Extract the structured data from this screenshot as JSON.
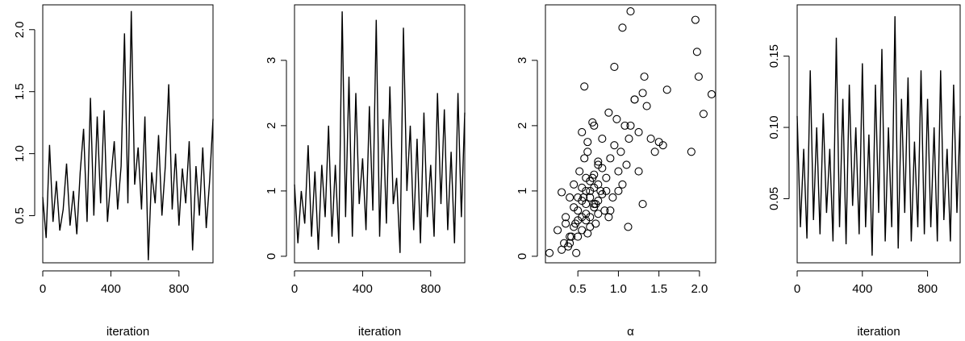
{
  "chart_data": [
    {
      "type": "line",
      "xlabel": "iteration",
      "xlim": [
        0,
        1000
      ],
      "ylim": [
        0.12,
        2.2
      ],
      "xticks": [
        0,
        400,
        800
      ],
      "xtick_labels": [
        "0",
        "400",
        "800"
      ],
      "yticks": [
        0.5,
        1.0,
        1.5,
        2.0
      ],
      "ytick_labels": [
        "0.5",
        "1.0",
        "1.5",
        "2.0"
      ],
      "series": [
        {
          "x": [
            0,
            20,
            40,
            60,
            80,
            100,
            120,
            140,
            160,
            180,
            200,
            220,
            240,
            260,
            280,
            300,
            320,
            340,
            360,
            380,
            400,
            420,
            440,
            460,
            480,
            500,
            520,
            540,
            560,
            580,
            600,
            620,
            640,
            660,
            680,
            700,
            720,
            740,
            760,
            780,
            800,
            820,
            840,
            860,
            880,
            900,
            920,
            940,
            960,
            980,
            1000
          ],
          "values": [
            0.65,
            0.32,
            1.07,
            0.45,
            0.78,
            0.38,
            0.55,
            0.92,
            0.42,
            0.7,
            0.35,
            0.85,
            1.2,
            0.45,
            1.45,
            0.5,
            1.3,
            0.6,
            1.35,
            0.45,
            0.8,
            1.1,
            0.55,
            0.9,
            1.97,
            0.6,
            2.15,
            0.75,
            1.05,
            0.55,
            1.3,
            0.14,
            0.85,
            0.6,
            1.15,
            0.5,
            0.9,
            1.56,
            0.55,
            1.0,
            0.42,
            0.88,
            0.6,
            1.1,
            0.22,
            0.9,
            0.5,
            1.05,
            0.4,
            0.78,
            1.28
          ]
        }
      ]
    },
    {
      "type": "line",
      "xlabel": "iteration",
      "xlim": [
        0,
        1000
      ],
      "ylim": [
        -0.1,
        3.85
      ],
      "xticks": [
        0,
        400,
        800
      ],
      "xtick_labels": [
        "0",
        "400",
        "800"
      ],
      "yticks": [
        0,
        1,
        2,
        3
      ],
      "ytick_labels": [
        "0",
        "1",
        "2",
        "3"
      ],
      "series": [
        {
          "x": [
            0,
            20,
            40,
            60,
            80,
            100,
            120,
            140,
            160,
            180,
            200,
            220,
            240,
            260,
            280,
            300,
            320,
            340,
            360,
            380,
            400,
            420,
            440,
            460,
            480,
            500,
            520,
            540,
            560,
            580,
            600,
            620,
            640,
            660,
            680,
            700,
            720,
            740,
            760,
            780,
            800,
            820,
            840,
            860,
            880,
            900,
            920,
            940,
            960,
            980,
            1000
          ],
          "values": [
            1.1,
            0.2,
            1.0,
            0.5,
            1.7,
            0.3,
            1.3,
            0.1,
            1.4,
            0.6,
            2.0,
            0.3,
            1.4,
            0.2,
            3.75,
            0.6,
            2.75,
            0.3,
            2.5,
            0.8,
            1.5,
            0.4,
            2.3,
            0.7,
            3.62,
            0.3,
            2.1,
            0.5,
            2.6,
            0.8,
            1.2,
            0.05,
            3.5,
            1.0,
            2.0,
            0.4,
            1.8,
            0.2,
            2.2,
            0.6,
            1.4,
            0.3,
            2.5,
            0.8,
            2.25,
            0.4,
            1.6,
            0.2,
            2.5,
            0.6,
            2.2
          ]
        }
      ]
    },
    {
      "type": "scatter",
      "xlabel": "α",
      "xlim": [
        0.1,
        2.2
      ],
      "ylim": [
        -0.1,
        3.85
      ],
      "xticks": [
        0.5,
        1.0,
        1.5,
        2.0
      ],
      "xtick_labels": [
        "0.5",
        "1.0",
        "1.5",
        "2.0"
      ],
      "yticks": [
        0,
        1,
        2,
        3
      ],
      "ytick_labels": [
        "0",
        "1",
        "2",
        "3"
      ],
      "series": [
        {
          "x": [
            0.15,
            0.25,
            0.3,
            0.33,
            0.35,
            0.38,
            0.4,
            0.42,
            0.45,
            0.47,
            0.5,
            0.52,
            0.55,
            0.57,
            0.6,
            0.62,
            0.65,
            0.68,
            0.7,
            0.72,
            0.75,
            0.78,
            0.8,
            0.83,
            0.85,
            0.88,
            0.9,
            0.93,
            0.95,
            0.98,
            1.0,
            1.03,
            1.05,
            1.08,
            1.1,
            1.13,
            1.15,
            1.2,
            1.25,
            1.3,
            1.35,
            1.4,
            1.45,
            1.5,
            1.55,
            1.6,
            1.9,
            1.95,
            1.97,
            1.99,
            2.05,
            2.15,
            0.3,
            0.35,
            0.4,
            0.45,
            0.5,
            0.55,
            0.6,
            0.65,
            0.7,
            0.75,
            0.8,
            0.85,
            0.9,
            0.4,
            0.45,
            0.5,
            0.55,
            0.6,
            0.65,
            0.7,
            0.75,
            0.8,
            0.5,
            0.55,
            0.6,
            0.65,
            0.7,
            0.6,
            0.65,
            0.7,
            0.75,
            0.58,
            0.62,
            0.68,
            0.72,
            1.12,
            1.05,
            0.95,
            1.32,
            1.0,
            0.88,
            1.25,
            1.15,
            1.2,
            1.3,
            0.55,
            0.48,
            0.58,
            0.62,
            0.75
          ],
          "values": [
            0.05,
            0.4,
            0.98,
            0.2,
            0.6,
            0.15,
            0.9,
            0.3,
            1.1,
            0.5,
            0.7,
            1.3,
            0.4,
            0.9,
            1.0,
            1.6,
            0.6,
            1.2,
            2.0,
            0.8,
            1.4,
            1.0,
            1.8,
            0.7,
            1.2,
            2.2,
            1.5,
            0.9,
            1.7,
            2.1,
            1.3,
            1.6,
            1.1,
            2.0,
            1.4,
            1.8,
            3.75,
            2.4,
            1.9,
            2.5,
            2.3,
            1.8,
            1.6,
            1.75,
            1.7,
            2.55,
            1.6,
            3.62,
            3.13,
            2.75,
            2.18,
            2.48,
            0.1,
            0.5,
            0.3,
            0.75,
            0.9,
            1.05,
            0.55,
            1.15,
            0.8,
            0.65,
            1.35,
            1.0,
            0.7,
            0.2,
            0.45,
            0.55,
            0.85,
            0.65,
            1.0,
            0.75,
            1.1,
            0.95,
            0.3,
            0.6,
            0.8,
            0.9,
            1.05,
            1.2,
            0.45,
            1.25,
            0.85,
            2.6,
            1.75,
            2.05,
            0.5,
            0.45,
            3.5,
            2.9,
            2.75,
            1.0,
            0.6,
            1.3,
            2.0,
            2.4,
            0.8,
            1.9,
            0.05,
            1.5,
            0.35,
            1.45
          ]
        }
      ]
    },
    {
      "type": "line",
      "xlabel": "iteration",
      "xlim": [
        0,
        1000
      ],
      "ylim": [
        0.005,
        0.186
      ],
      "xticks": [
        0,
        400,
        800
      ],
      "xtick_labels": [
        "0",
        "400",
        "800"
      ],
      "yticks": [
        0.05,
        0.1,
        0.15
      ],
      "ytick_labels": [
        "0.05",
        "0.10",
        "0.15"
      ],
      "series": [
        {
          "x": [
            0,
            20,
            40,
            60,
            80,
            100,
            120,
            140,
            160,
            180,
            200,
            220,
            240,
            260,
            280,
            300,
            320,
            340,
            360,
            380,
            400,
            420,
            440,
            460,
            480,
            500,
            520,
            540,
            560,
            580,
            600,
            620,
            640,
            660,
            680,
            700,
            720,
            740,
            760,
            780,
            800,
            820,
            840,
            860,
            880,
            900,
            920,
            940,
            960,
            980,
            1000
          ],
          "values": [
            0.108,
            0.03,
            0.085,
            0.022,
            0.14,
            0.035,
            0.1,
            0.025,
            0.11,
            0.04,
            0.085,
            0.02,
            0.163,
            0.03,
            0.12,
            0.018,
            0.13,
            0.045,
            0.1,
            0.025,
            0.145,
            0.03,
            0.095,
            0.01,
            0.13,
            0.04,
            0.155,
            0.02,
            0.1,
            0.03,
            0.178,
            0.015,
            0.12,
            0.04,
            0.135,
            0.02,
            0.09,
            0.03,
            0.14,
            0.025,
            0.12,
            0.03,
            0.1,
            0.02,
            0.14,
            0.035,
            0.085,
            0.02,
            0.13,
            0.04,
            0.108
          ]
        }
      ]
    }
  ]
}
